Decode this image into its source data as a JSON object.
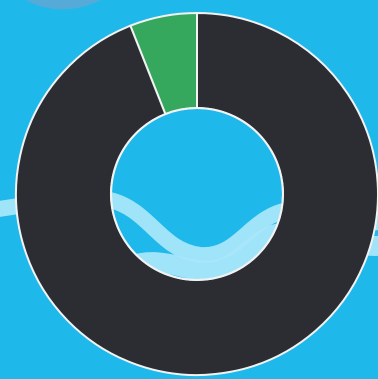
{
  "colors": {
    "background": "#1fb8ea",
    "slice_dark": "#2b2d33",
    "slice_green": "#36a85e",
    "separator": "#f2f2f2",
    "wave_light": "#a8e6fb",
    "wave_dark": "#58a9d6"
  },
  "chart_data": {
    "type": "pie",
    "variant": "donut",
    "title": "",
    "legend": "none",
    "slices": [
      {
        "value": 94,
        "color": "#2b2d33"
      },
      {
        "value": 6,
        "color": "#36a85e"
      }
    ]
  }
}
